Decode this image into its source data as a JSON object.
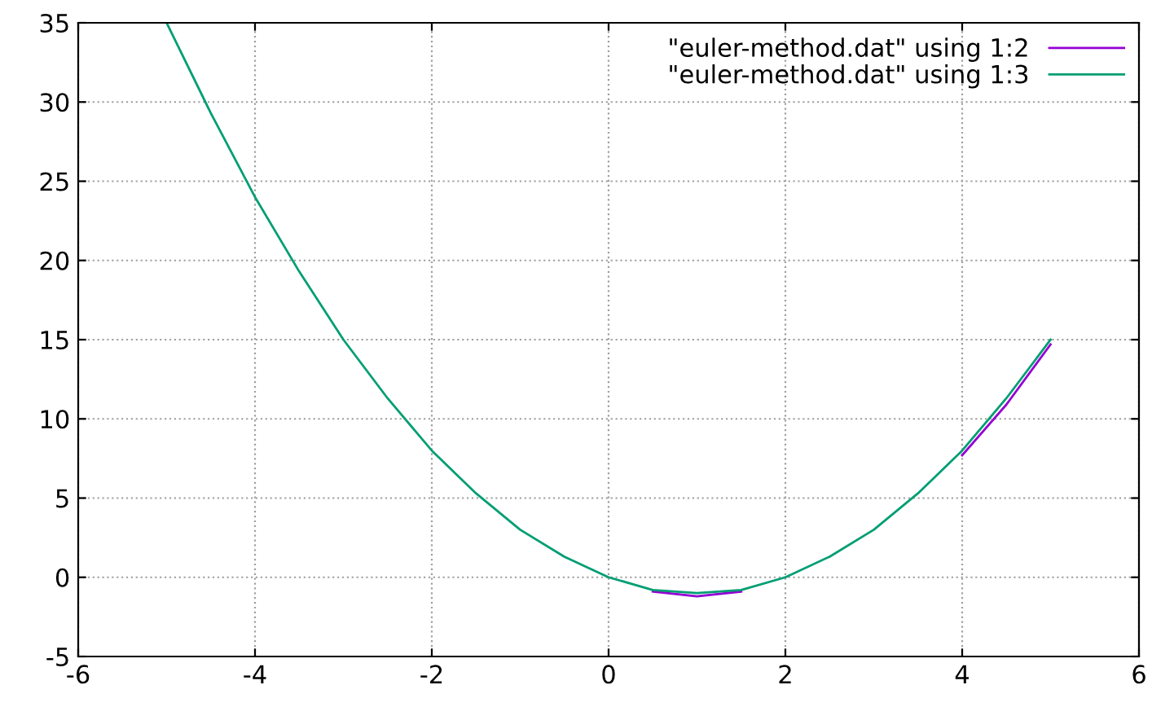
{
  "chart_data": {
    "type": "line",
    "x": [
      -5,
      -4.5,
      -4,
      -3.5,
      -3,
      -2.5,
      -2,
      -1.5,
      -1,
      -0.5,
      0,
      0.5,
      1,
      1.5,
      2,
      2.5,
      3,
      3.5,
      4,
      4.5,
      5
    ],
    "series": [
      {
        "name": "\"euler-method.dat\" using 1:2",
        "color": "#9400d3",
        "values": [
          null,
          null,
          null,
          null,
          null,
          null,
          null,
          null,
          null,
          null,
          null,
          -0.9,
          -1.2,
          -0.9,
          null,
          null,
          null,
          null,
          7.7,
          10.9,
          14.7
        ]
      },
      {
        "name": "\"euler-method.dat\" using 1:3",
        "color": "#009e73",
        "values": [
          35,
          29.3,
          24,
          19.3,
          15,
          11.3,
          8,
          5.3,
          3,
          1.3,
          0,
          -0.8,
          -1,
          -0.8,
          0,
          1.3,
          3,
          5.3,
          8,
          11.3,
          15
        ]
      }
    ],
    "xlim": [
      -6,
      6
    ],
    "xticks": [
      -6,
      -4,
      -2,
      0,
      2,
      4,
      6
    ],
    "ylim": [
      -5,
      35
    ],
    "yticks": [
      -5,
      0,
      5,
      10,
      15,
      20,
      25,
      30,
      35
    ],
    "grid": true,
    "legend": "top right",
    "marker": "none",
    "line_style": "solid"
  }
}
